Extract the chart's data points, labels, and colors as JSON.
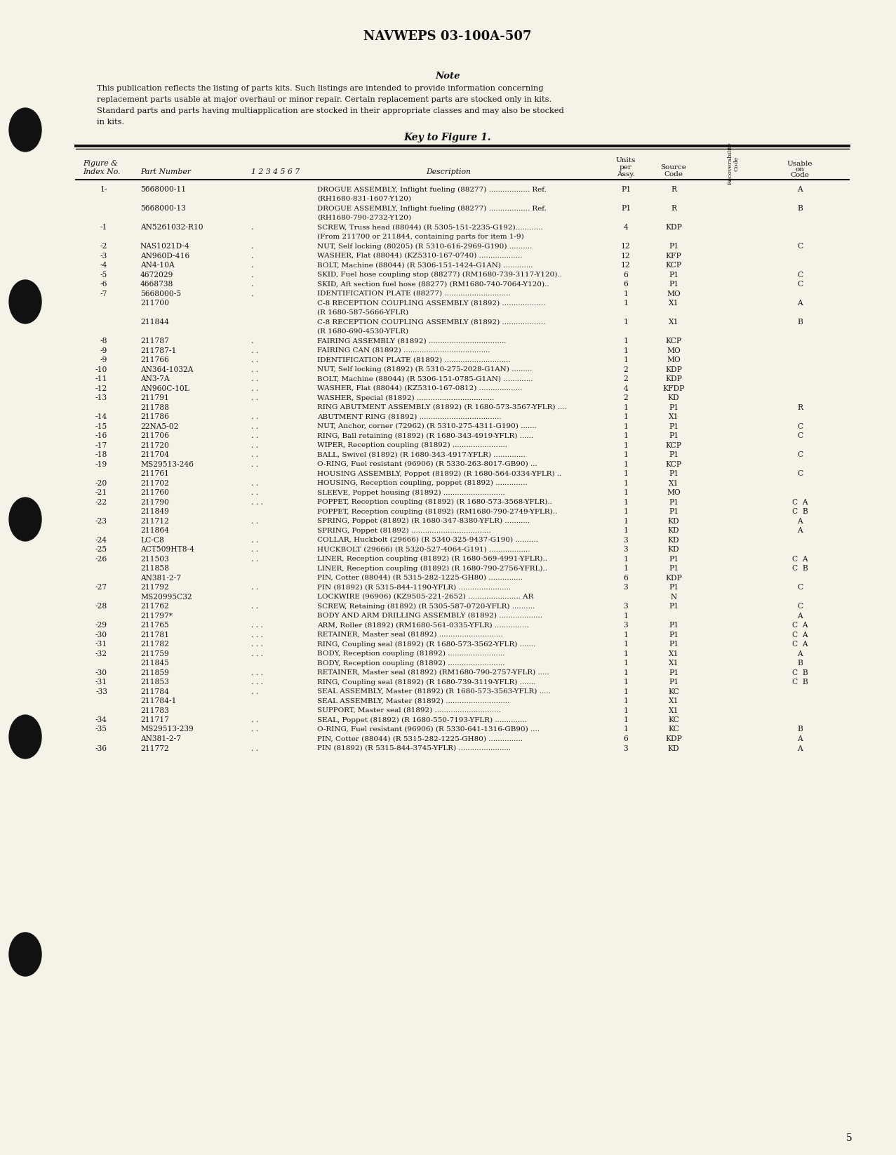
{
  "bg_color": "#f5f2e8",
  "title": "NAVWEPS 03-100A-507",
  "note_title": "Note",
  "note_lines": [
    "This publication reflects the listing of parts kits. Such listings are intended to provide information concerning",
    "replacement parts usable at major overhaul or minor repair. Certain replacement parts are stocked only in kits.",
    "Standard parts and parts having multiapplication are stocked in their appropriate classes and may also be stocked",
    "in kits."
  ],
  "key_title": "Key to Figure 1.",
  "page_number": "5",
  "hole_positions": [
    185,
    430,
    740,
    1050,
    1360
  ],
  "rows": [
    [
      "1-",
      "5668000-11",
      "",
      "DROGUE ASSEMBLY, Inflight fueling (88277) .................. Ref.",
      "P1",
      "R",
      "A"
    ],
    [
      "",
      "",
      "",
      "(RH1680-831-1607-Y120)",
      "",
      "",
      ""
    ],
    [
      "",
      "5668000-13",
      "",
      "DROGUE ASSEMBLY, Inflight fueling (88277) .................. Ref.",
      "P1",
      "R",
      "B"
    ],
    [
      "",
      "",
      "",
      "(RH1680-790-2732-Y120)",
      "",
      "",
      ""
    ],
    [
      "-1",
      "AN5261032-R10",
      ".",
      "SCREW, Truss head (88044) (R 5305-151-2235-G192)............",
      "4",
      "KDP",
      ""
    ],
    [
      "",
      "",
      "",
      "(From 211700 or 211844, containing parts for item 1-9)",
      "",
      "",
      ""
    ],
    [
      "-2",
      "NAS1021D-4",
      ".",
      "NUT, Self locking (80205) (R 5310-616-2969-G190) ..........",
      "12",
      "P1",
      "C"
    ],
    [
      "-3",
      "AN960D-416",
      ".",
      "WASHER, Flat (88044) (KZ5310-167-0740) ...................",
      "12",
      "KFP",
      ""
    ],
    [
      "-4",
      "AN4-10A",
      ".",
      "BOLT, Machine (88044) (R 5306-151-1424-G1AN) .............",
      "12",
      "KCP",
      ""
    ],
    [
      "-5",
      "4672029",
      ".",
      "SKID, Fuel hose coupling stop (88277) (RM1680-739-3117-Y120)..",
      "6",
      "P1",
      "C"
    ],
    [
      "-6",
      "4668738",
      ".",
      "SKID, Aft section fuel hose (88277) (RM1680-740-7064-Y120)..",
      "6",
      "P1",
      "C"
    ],
    [
      "-7",
      "5668000-5",
      ".",
      "IDENTIFICATION PLATE (88277) .............................",
      "1",
      "MO",
      ""
    ],
    [
      "",
      "211700",
      "",
      "C-8 RECEPTION COUPLING ASSEMBLY (81892) ...................",
      "1",
      "X1",
      "A"
    ],
    [
      "",
      "",
      "",
      "(R 1680-587-5666-YFLR)",
      "",
      "",
      ""
    ],
    [
      "",
      "211844",
      "",
      "C-8 RECEPTION COUPLING ASSEMBLY (81892) ...................",
      "1",
      "X1",
      "B"
    ],
    [
      "",
      "",
      "",
      "(R 1680-690-4530-YFLR)",
      "",
      "",
      ""
    ],
    [
      "-8",
      "211787",
      ".",
      "FAIRING ASSEMBLY (81892) ..................................",
      "1",
      "KCP",
      ""
    ],
    [
      "-9",
      "211787-1",
      ". .",
      "FAIRING CAN (81892) ......................................",
      "1",
      "MO",
      ""
    ],
    [
      "-9",
      "211766",
      ". .",
      "IDENTIFICATION PLATE (81892) .............................",
      "1",
      "MO",
      ""
    ],
    [
      "-10",
      "AN364-1032A",
      ". .",
      "NUT, Self locking (81892) (R 5310-275-2028-G1AN) .........",
      "2",
      "KDP",
      ""
    ],
    [
      "-11",
      "AN3-7A",
      ". .",
      "BOLT, Machine (88044) (R 5306-151-0785-G1AN) .............",
      "2",
      "KDP",
      ""
    ],
    [
      "-12",
      "AN960C-10L",
      ". .",
      "WASHER, Flat (88044) (KZ5310-167-0812) ...................",
      "4",
      "KFDP",
      ""
    ],
    [
      "-13",
      "211791",
      ". .",
      "WASHER, Special (81892) ..................................",
      "2",
      "KD",
      ""
    ],
    [
      "",
      "211788",
      "",
      "RING ABUTMENT ASSEMBLY (81892) (R 1680-573-3567-YFLR) ....",
      "1",
      "P1",
      "R"
    ],
    [
      "-14",
      "211786",
      ". .",
      "ABUTMENT RING (81892) ....................................",
      "1",
      "X1",
      ""
    ],
    [
      "-15",
      "22NA5-02",
      ". .",
      "NUT, Anchor, corner (72962) (R 5310-275-4311-G190) .......",
      "1",
      "P1",
      "C"
    ],
    [
      "-16",
      "211706",
      ". .",
      "RING, Ball retaining (81892) (R 1680-343-4919-YFLR) ......",
      "1",
      "P1",
      "C"
    ],
    [
      "-17",
      "211720",
      ". .",
      "WIPER, Reception coupling (81892) ........................",
      "1",
      "KCP",
      ""
    ],
    [
      "-18",
      "211704",
      ". .",
      "BALL, Swivel (81892) (R 1680-343-4917-YFLR) ..............",
      "1",
      "P1",
      "C"
    ],
    [
      "-19",
      "MS29513-246",
      ". .",
      "O-RING, Fuel resistant (96906) (R 5330-263-8017-GB90) ...",
      "1",
      "KCP",
      ""
    ],
    [
      "",
      "211761",
      "",
      "HOUSING ASSEMBLY, Poppet (81892) (R 1680-564-0334-YFLR) ..",
      "1",
      "P1",
      "C"
    ],
    [
      "-20",
      "211702",
      ". .",
      "HOUSING, Reception coupling, poppet (81892) ..............",
      "1",
      "X1",
      ""
    ],
    [
      "-21",
      "211760",
      ". .",
      "SLEEVE, Poppet housing (81892) ...........................",
      "1",
      "MO",
      ""
    ],
    [
      "-22",
      "211790",
      ". . .",
      "POPPET, Reception coupling (81892) (R 1680-573-3568-YFLR)..",
      "1",
      "P1",
      "C  A"
    ],
    [
      "",
      "211849",
      "",
      "POPPET, Reception coupling (81892) (RM1680-790-2749-YFLR)..",
      "1",
      "P1",
      "C  B"
    ],
    [
      "-23",
      "211712",
      ". .",
      "SPRING, Poppet (81892) (R 1680-347-8380-YFLR) ...........",
      "1",
      "KD",
      "A"
    ],
    [
      "",
      "211864",
      "",
      "SPRING, Poppet (81892) ...................................",
      "1",
      "KD",
      "A"
    ],
    [
      "-24",
      "LC-C8",
      ". .",
      "COLLAR, Huckbolt (29666) (R 5340-325-9437-G190) ..........",
      "3",
      "KD",
      ""
    ],
    [
      "-25",
      "ACT509HT8-4",
      ". .",
      "HUCKBOLT (29666) (R 5320-527-4064-G191) ..................",
      "3",
      "KD",
      ""
    ],
    [
      "-26",
      "211503",
      ". .",
      "LINER, Reception coupling (81892) (R 1680-569-4991-YFLR)..",
      "1",
      "P1",
      "C  A"
    ],
    [
      "",
      "211858",
      "",
      "LINER, Reception coupling (81892) (R 1680-790-2756-YFRL)..",
      "1",
      "P1",
      "C  B"
    ],
    [
      "",
      "AN381-2-7",
      "",
      "PIN, Cotter (88044) (R 5315-282-1225-GH80) ...............",
      "6",
      "KDP",
      ""
    ],
    [
      "-27",
      "211792",
      ". .",
      "PIN (81892) (R 5315-844-1190-YFLR) .......................",
      "3",
      "P1",
      "C"
    ],
    [
      "",
      "MS20995C32",
      "",
      "LOCKWIRE (96906) (KZ9505-221-2652) ....................... AR",
      "",
      "N",
      ""
    ],
    [
      "-28",
      "211762",
      ". .",
      "SCREW, Retaining (81892) (R 5305-587-0720-YFLR) ..........",
      "3",
      "P1",
      "C"
    ],
    [
      "",
      "211797*",
      "",
      "BODY AND ARM DRILLING ASSEMBLY (81892) ...................",
      "1",
      "",
      "A"
    ],
    [
      "-29",
      "211765",
      ". . .",
      "ARM, Roller (81892) (RM1680-561-0335-YFLR) ...............",
      "3",
      "P1",
      "C  A"
    ],
    [
      "-30",
      "211781",
      ". . .",
      "RETAINER, Master seal (81892) ............................",
      "1",
      "P1",
      "C  A"
    ],
    [
      "-31",
      "211782",
      ". . .",
      "RING, Coupling seal (81892) (R 1680-573-3562-YFLR) .......",
      "1",
      "P1",
      "C  A"
    ],
    [
      "-32",
      "211759",
      ". . .",
      "BODY, Reception coupling (81892) .........................",
      "1",
      "X1",
      "A"
    ],
    [
      "",
      "211845",
      "",
      "BODY, Reception coupling (81892) .........................",
      "1",
      "X1",
      "B"
    ],
    [
      "-30",
      "211859",
      ". . .",
      "RETAINER, Master seal (81892) (RM1680-790-2757-YFLR) .....",
      "1",
      "P1",
      "C  B"
    ],
    [
      "-31",
      "211853",
      ". . .",
      "RING, Coupling seal (81892) (R 1680-739-3119-YFLR) .......",
      "1",
      "P1",
      "C  B"
    ],
    [
      "-33",
      "211784",
      ". .",
      "SEAL ASSEMBLY, Master (81892) (R 1680-573-3563-YFLR) .....",
      "1",
      "KC",
      ""
    ],
    [
      "",
      "211784-1",
      "",
      "SEAL ASSEMBLY, Master (81892) ............................",
      "1",
      "X1",
      ""
    ],
    [
      "",
      "211783",
      "",
      "SUPPORT, Master seal (81892) .............................",
      "1",
      "X1",
      ""
    ],
    [
      "-34",
      "211717",
      ". .",
      "SEAL, Poppet (81892) (R 1680-550-7193-YFLR) ..............",
      "1",
      "KC",
      ""
    ],
    [
      "-35",
      "MS29513-239",
      ". .",
      "O-RING, Fuel resistant (96906) (R 5330-641-1316-GB90) ....",
      "1",
      "KC",
      "B"
    ],
    [
      "",
      "AN381-2-7",
      "",
      "PIN, Cotter (88044) (R 5315-282-1225-GH80) ...............",
      "6",
      "KDP",
      "A"
    ],
    [
      "-36",
      "211772",
      ". .",
      "PIN (81892) (R 5315-844-3745-YFLR) .......................",
      "3",
      "KD",
      "A"
    ]
  ]
}
